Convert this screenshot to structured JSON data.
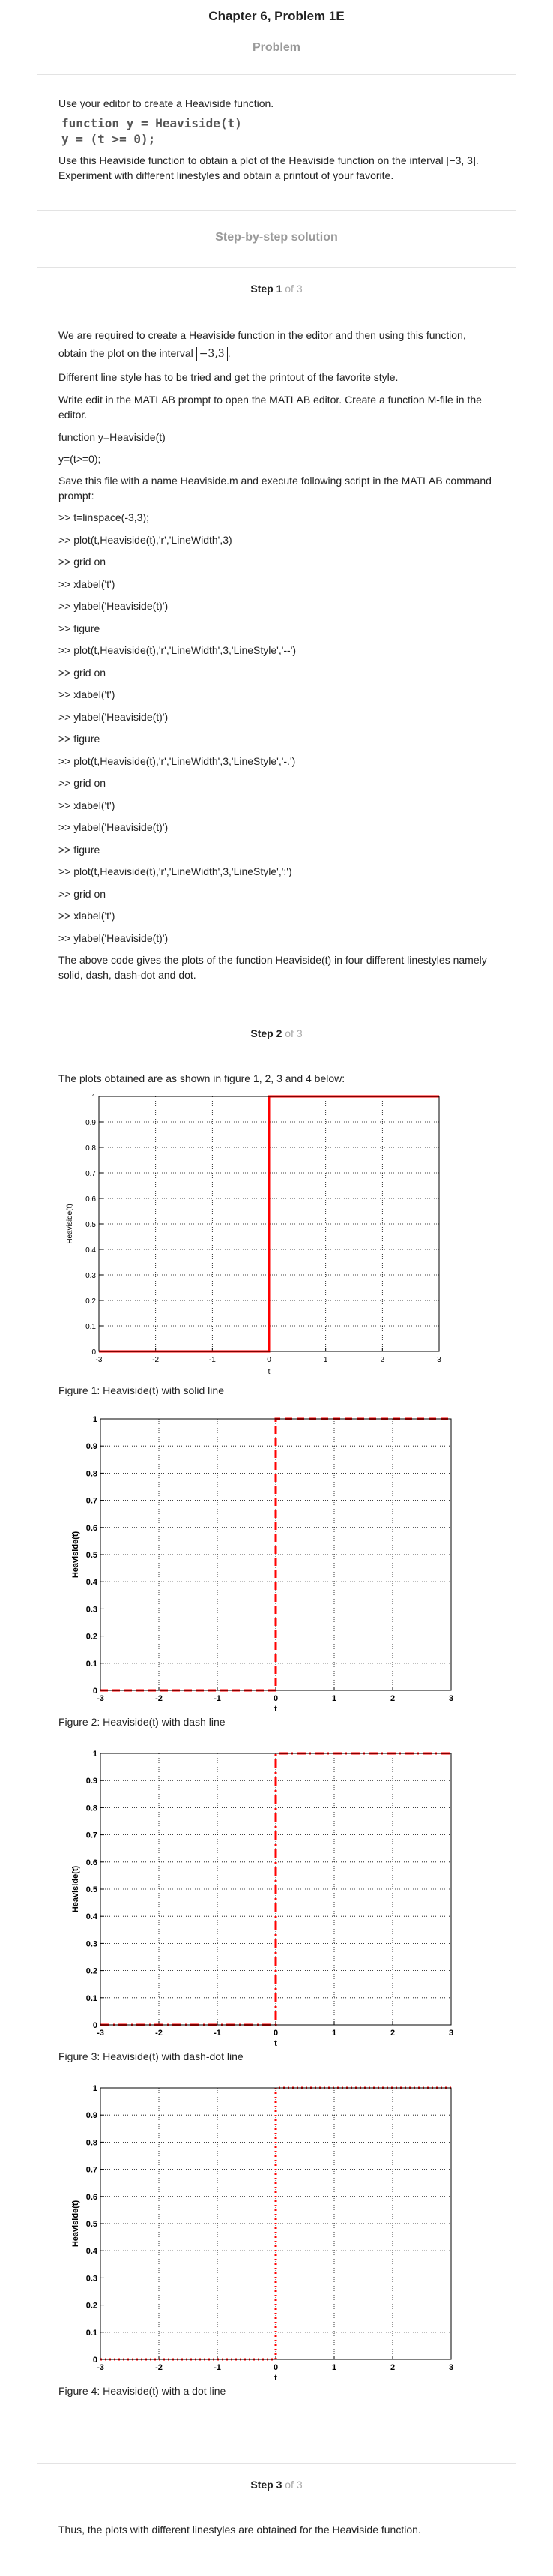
{
  "header": {
    "title": "Chapter 6, Problem 1E"
  },
  "problem": {
    "section_title": "Problem",
    "intro": "Use your editor to create a Heaviside function.",
    "code_line1": "function y = Heaviside(t)",
    "code_line2": "y = (t >= 0);",
    "body": "Use this Heaviside function to obtain a plot of the Heaviside function on the interval [−3, 3]. Experiment with different linestyles and obtain a printout of your favorite."
  },
  "solution": {
    "section_title": "Step-by-step solution",
    "step1": {
      "label": "Step 1",
      "of": "of 3",
      "intro_before": "We are required to create a Heaviside function in the editor and then using this function, obtain the plot on the interval",
      "interval": "−3,3",
      "intro_after": ".",
      "p2": "Different line style has to be tried and get the printout of the favorite style.",
      "p3": "Write edit in the MATLAB prompt to open the MATLAB editor. Create a function M-file in the editor.",
      "func1": "function y=Heaviside(t)",
      "func2": "y=(t>=0);",
      "p4": "Save this file with a name Heaviside.m and execute following script in the MATLAB command prompt:",
      "commands": [
        ">> t=linspace(-3,3);",
        ">> plot(t,Heaviside(t),'r','LineWidth',3)",
        ">> grid on",
        ">> xlabel('t')",
        ">> ylabel('Heaviside(t)')",
        ">> figure",
        ">> plot(t,Heaviside(t),'r','LineWidth',3,'LineStyle','--')",
        ">> grid on",
        ">> xlabel('t')",
        ">> ylabel('Heaviside(t)')",
        ">> figure",
        ">> plot(t,Heaviside(t),'r','LineWidth',3,'LineStyle','-.')",
        ">> grid on",
        ">> xlabel('t')",
        ">> ylabel('Heaviside(t)')",
        ">> figure",
        ">> plot(t,Heaviside(t),'r','LineWidth',3,'LineStyle',':')",
        ">> grid on",
        ">> xlabel('t')",
        ">> ylabel('Heaviside(t)')"
      ],
      "conclusion": "The above code gives the plots of the function Heaviside(t) in four different linestyles namely solid, dash, dash-dot and dot."
    },
    "step2": {
      "label": "Step 2",
      "of": "of 3",
      "intro": "The plots obtained are as shown in figure 1, 2, 3 and 4 below:",
      "captions": [
        "Figure 1: Heaviside(t) with solid line",
        "Figure 2: Heaviside(t) with dash line",
        "Figure 3: Heaviside(t) with dash-dot line",
        "Figure 4: Heaviside(t) with a dot line"
      ]
    },
    "step3": {
      "label": "Step 3",
      "of": "of 3",
      "text": "Thus, the plots with different linestyles are obtained for the Heaviside function."
    }
  },
  "chart_data": [
    {
      "type": "line",
      "linestyle": "solid",
      "color": "#ff0000",
      "xlabel": "t",
      "ylabel": "Heaviside(t)",
      "xlim": [
        -3,
        3
      ],
      "ylim": [
        0,
        1
      ],
      "xticks": [
        "-3",
        "-2",
        "-1",
        "0",
        "1",
        "2",
        "3"
      ],
      "yticks": [
        "0",
        "0.1",
        "0.2",
        "0.3",
        "0.4",
        "0.5",
        "0.6",
        "0.7",
        "0.8",
        "0.9",
        "1"
      ],
      "grid": true,
      "series": [
        {
          "x": [
            -3,
            0,
            0,
            3
          ],
          "y": [
            0,
            0,
            1,
            1
          ]
        }
      ]
    },
    {
      "type": "line",
      "linestyle": "dashed",
      "color": "#ff0000",
      "xlabel": "t",
      "ylabel": "Heaviside(t)",
      "xlim": [
        -3,
        3
      ],
      "ylim": [
        0,
        1
      ],
      "xticks": [
        "-3",
        "-2",
        "-1",
        "0",
        "1",
        "2",
        "3"
      ],
      "yticks": [
        "0",
        "0.1",
        "0.2",
        "0.3",
        "0.4",
        "0.5",
        "0.6",
        "0.7",
        "0.8",
        "0.9",
        "1"
      ],
      "grid": true,
      "series": [
        {
          "x": [
            -3,
            0,
            0,
            3
          ],
          "y": [
            0,
            0,
            1,
            1
          ]
        }
      ]
    },
    {
      "type": "line",
      "linestyle": "dash-dot",
      "color": "#ff0000",
      "xlabel": "t",
      "ylabel": "Heaviside(t)",
      "xlim": [
        -3,
        3
      ],
      "ylim": [
        0,
        1
      ],
      "xticks": [
        "-3",
        "-2",
        "-1",
        "0",
        "1",
        "2",
        "3"
      ],
      "yticks": [
        "0",
        "0.1",
        "0.2",
        "0.3",
        "0.4",
        "0.5",
        "0.6",
        "0.7",
        "0.8",
        "0.9",
        "1"
      ],
      "grid": true,
      "series": [
        {
          "x": [
            -3,
            0,
            0,
            3
          ],
          "y": [
            0,
            0,
            1,
            1
          ]
        }
      ]
    },
    {
      "type": "line",
      "linestyle": "dotted",
      "color": "#ff0000",
      "xlabel": "t",
      "ylabel": "Heaviside(t)",
      "xlim": [
        -3,
        3
      ],
      "ylim": [
        0,
        1
      ],
      "xticks": [
        "-3",
        "-2",
        "-1",
        "0",
        "1",
        "2",
        "3"
      ],
      "yticks": [
        "0",
        "0.1",
        "0.2",
        "0.3",
        "0.4",
        "0.5",
        "0.6",
        "0.7",
        "0.8",
        "0.9",
        "1"
      ],
      "grid": true,
      "series": [
        {
          "x": [
            -3,
            0,
            0,
            3
          ],
          "y": [
            0,
            0,
            1,
            1
          ]
        }
      ]
    }
  ]
}
